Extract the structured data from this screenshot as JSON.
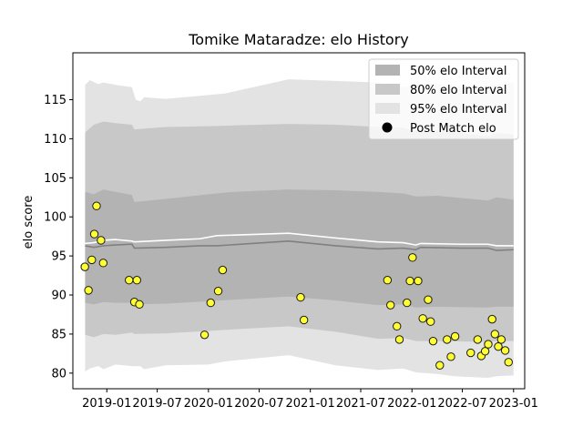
{
  "chart_data": {
    "type": "line",
    "title": "Tomike Mataradze: elo History",
    "xlabel": "",
    "ylabel": "elo score",
    "xlim": [
      "2018-09-01",
      "2023-02-10"
    ],
    "ylim": [
      78,
      121
    ],
    "x_ticks": [
      "2019-01",
      "2019-07",
      "2020-01",
      "2020-07",
      "2021-01",
      "2021-07",
      "2022-01",
      "2022-07",
      "2023-01"
    ],
    "y_ticks": [
      80,
      85,
      90,
      95,
      100,
      105,
      110,
      115
    ],
    "legend": {
      "position": "top-right",
      "entries": [
        "50% elo Interval",
        "80% elo Interval",
        "95% elo Interval",
        "Post Match elo"
      ]
    },
    "colors": {
      "band50": "#b3b3b3",
      "band80": "#c8c8c8",
      "band95": "#e3e3e3",
      "mean_line": "#808080",
      "upper_line": "#ffffff",
      "marker_fill": "#ffff33",
      "marker_edge": "#1a1a1a"
    },
    "series": [
      {
        "name": "50% elo Interval",
        "kind": "band",
        "x": [
          "2018-10-15",
          "2018-11-15",
          "2018-12-20",
          "2019-02-01",
          "2019-04-01",
          "2019-04-10",
          "2019-08-01",
          "2020-01-01",
          "2020-04-01",
          "2020-10-15",
          "2021-04-01",
          "2021-09-01",
          "2021-12-01",
          "2022-01-15",
          "2022-04-01",
          "2022-10-01",
          "2022-11-01",
          "2023-01-01"
        ],
        "lower": [
          89.0,
          88.8,
          89.1,
          89.0,
          89.0,
          88.8,
          88.9,
          89.2,
          89.4,
          89.8,
          89.3,
          88.7,
          88.8,
          88.4,
          88.5,
          88.4,
          88.5,
          88.5
        ],
        "upper": [
          103.2,
          102.9,
          103.5,
          103.2,
          102.8,
          101.9,
          102.3,
          102.9,
          103.2,
          103.5,
          103.4,
          103.2,
          103.0,
          102.6,
          102.7,
          102.1,
          102.5,
          102.2
        ]
      },
      {
        "name": "80% elo Interval",
        "kind": "band",
        "x": [
          "2018-10-15",
          "2018-11-15",
          "2018-12-20",
          "2019-02-01",
          "2019-04-01",
          "2019-04-10",
          "2019-08-01",
          "2020-01-01",
          "2020-04-01",
          "2020-10-15",
          "2021-04-01",
          "2021-09-01",
          "2021-12-01",
          "2022-01-15",
          "2022-04-01",
          "2022-10-01",
          "2022-11-01",
          "2023-01-01"
        ],
        "lower": [
          84.9,
          84.6,
          85.0,
          84.9,
          85.2,
          85.0,
          85.1,
          85.4,
          85.6,
          86.0,
          85.3,
          84.4,
          84.5,
          84.1,
          84.1,
          84.0,
          84.1,
          84.1
        ],
        "upper": [
          110.8,
          111.8,
          112.2,
          112.0,
          111.8,
          111.2,
          111.5,
          111.6,
          111.7,
          111.9,
          111.8,
          111.5,
          111.4,
          111.0,
          111.1,
          110.3,
          110.8,
          110.5
        ]
      },
      {
        "name": "95% elo Interval",
        "kind": "band",
        "x": [
          "2018-10-15",
          "2018-11-01",
          "2018-12-01",
          "2018-12-20",
          "2019-02-01",
          "2019-04-01",
          "2019-04-15",
          "2019-05-01",
          "2019-05-15",
          "2019-08-01",
          "2020-01-01",
          "2020-03-01",
          "2020-10-15",
          "2021-04-01",
          "2021-09-01",
          "2021-12-01",
          "2022-01-15",
          "2022-04-01",
          "2022-06-01",
          "2022-10-01",
          "2022-11-01",
          "2023-01-01"
        ],
        "lower": [
          80.2,
          80.6,
          80.9,
          80.5,
          81.1,
          80.9,
          80.9,
          80.9,
          80.5,
          81.0,
          81.1,
          81.5,
          82.3,
          81.0,
          80.4,
          80.6,
          80.1,
          79.9,
          79.6,
          79.4,
          79.6,
          79.7
        ],
        "upper": [
          116.9,
          117.5,
          117.0,
          117.2,
          116.9,
          116.6,
          115.0,
          114.8,
          115.3,
          115.1,
          115.6,
          115.8,
          117.6,
          117.4,
          117.2,
          116.6,
          117.0,
          117.1,
          116.7,
          116.5,
          117.0,
          117.2
        ]
      },
      {
        "name": "",
        "kind": "line",
        "color": "#808080",
        "x": [
          "2018-10-15",
          "2018-11-15",
          "2018-12-20",
          "2019-02-01",
          "2019-04-01",
          "2019-04-10",
          "2019-08-01",
          "2019-12-01",
          "2020-02-01",
          "2020-10-15",
          "2021-04-01",
          "2021-09-01",
          "2021-12-01",
          "2022-01-15",
          "2022-02-01",
          "2022-07-01",
          "2022-10-01",
          "2022-11-01",
          "2023-01-01"
        ],
        "y": [
          96.3,
          96.1,
          96.3,
          96.4,
          96.5,
          96.0,
          96.1,
          96.3,
          96.3,
          96.9,
          96.3,
          95.9,
          96.0,
          95.8,
          96.1,
          96.0,
          96.0,
          95.7,
          95.8
        ]
      },
      {
        "name": "",
        "kind": "line",
        "color": "#ffffff",
        "x": [
          "2018-10-15",
          "2018-11-15",
          "2018-12-20",
          "2019-02-01",
          "2019-04-01",
          "2019-04-10",
          "2019-08-01",
          "2019-12-01",
          "2020-02-01",
          "2020-10-15",
          "2021-04-01",
          "2021-09-01",
          "2021-12-01",
          "2022-01-15",
          "2022-02-01",
          "2022-07-01",
          "2022-10-01",
          "2022-11-01",
          "2023-01-01"
        ],
        "y": [
          96.6,
          96.7,
          97.0,
          97.1,
          96.9,
          96.8,
          97.0,
          97.2,
          97.6,
          97.9,
          97.3,
          96.8,
          96.7,
          96.4,
          96.6,
          96.5,
          96.5,
          96.3,
          96.3
        ]
      },
      {
        "name": "Post Match elo",
        "kind": "scatter",
        "x": [
          "2018-10-14",
          "2018-10-27",
          "2018-11-08",
          "2018-11-17",
          "2018-11-25",
          "2018-12-11",
          "2018-12-19",
          "2019-03-22",
          "2019-04-10",
          "2019-04-19",
          "2019-04-28",
          "2019-12-18",
          "2020-01-09",
          "2020-02-05",
          "2020-02-21",
          "2020-11-27",
          "2020-12-09",
          "2021-10-05",
          "2021-10-16",
          "2021-11-08",
          "2021-11-17",
          "2021-12-14",
          "2021-12-25",
          "2022-01-03",
          "2022-01-23",
          "2022-02-09",
          "2022-02-28",
          "2022-03-09",
          "2022-03-18",
          "2022-04-11",
          "2022-05-07",
          "2022-05-21",
          "2022-06-05",
          "2022-07-31",
          "2022-08-25",
          "2022-09-07",
          "2022-09-21",
          "2022-10-02",
          "2022-10-16",
          "2022-10-26",
          "2022-11-07",
          "2022-11-18",
          "2022-12-02",
          "2022-12-14"
        ],
        "y": [
          93.6,
          90.6,
          94.5,
          97.8,
          101.4,
          97.0,
          94.1,
          91.9,
          89.1,
          91.9,
          88.8,
          84.9,
          89.0,
          90.5,
          93.2,
          89.7,
          86.8,
          91.9,
          88.7,
          86.0,
          84.3,
          89.0,
          91.8,
          94.8,
          91.8,
          87.0,
          89.4,
          86.6,
          84.1,
          81.0,
          84.3,
          82.1,
          84.7,
          82.6,
          84.3,
          82.2,
          82.8,
          83.7,
          86.9,
          85.0,
          83.4,
          84.3,
          82.9,
          81.4
        ]
      }
    ]
  }
}
